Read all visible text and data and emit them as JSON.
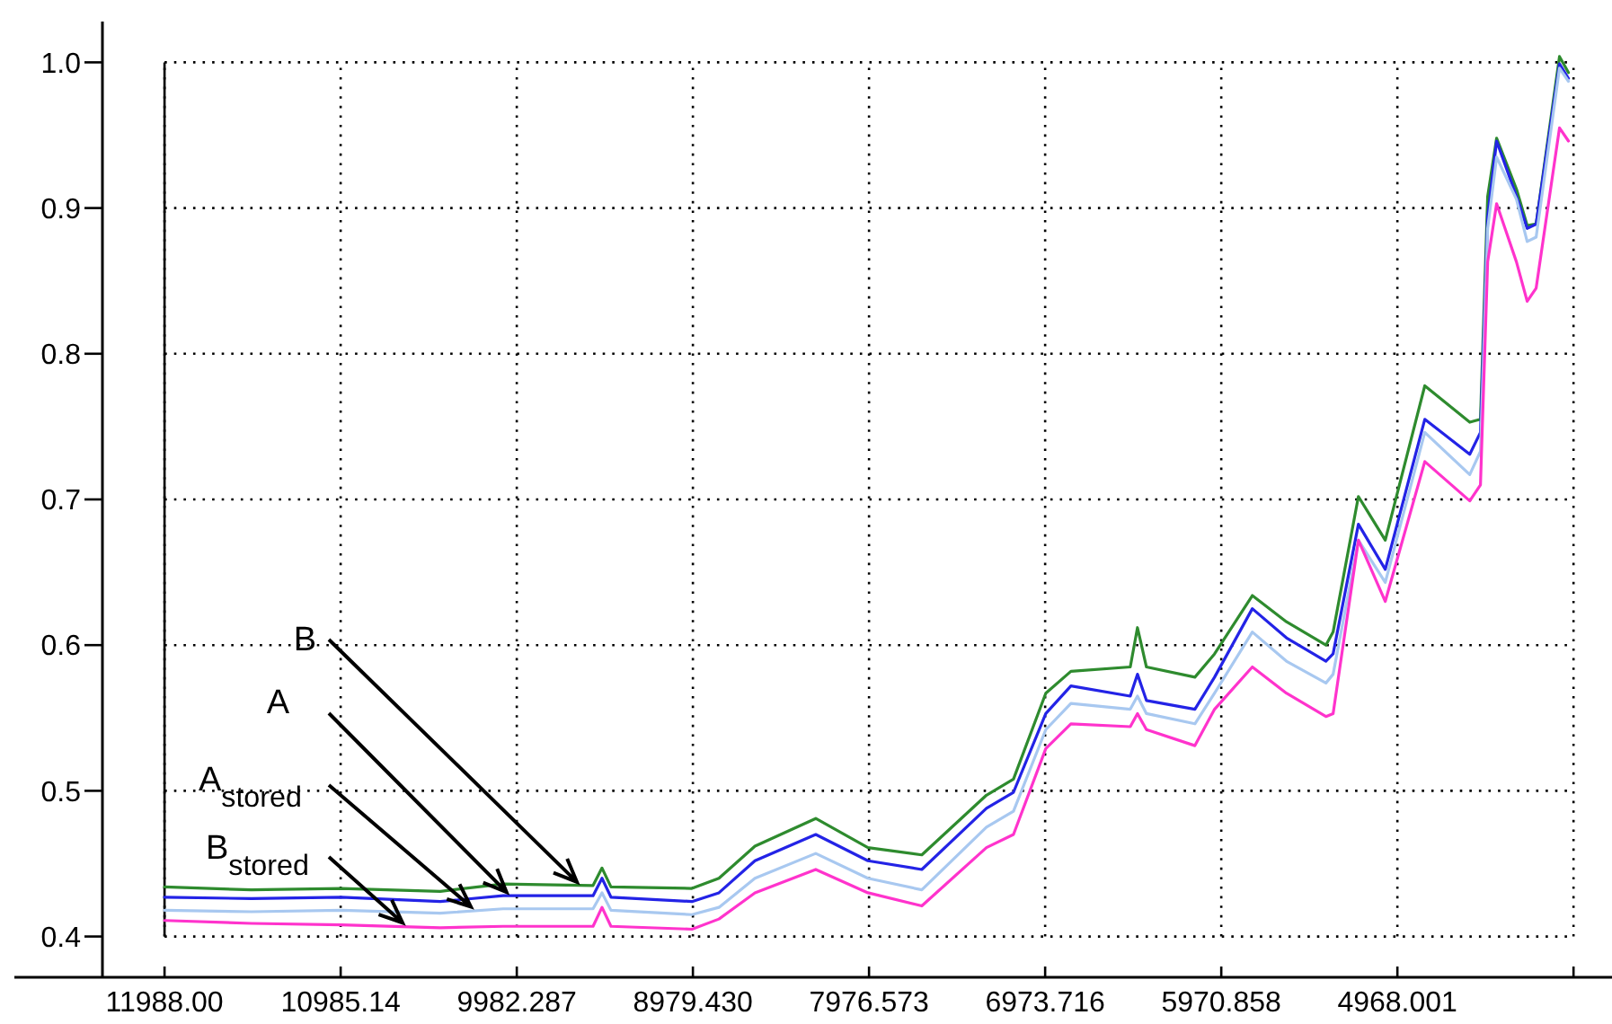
{
  "chart_data": {
    "type": "line",
    "x": [
      11988,
      11493,
      10981,
      10418,
      10060,
      9548,
      9497,
      9446,
      8985,
      8831,
      8626,
      8280,
      7983,
      7676,
      7308,
      7154,
      6970,
      6827,
      6489,
      6448,
      6397,
      6121,
      6009,
      5794,
      5600,
      5375,
      5334,
      5190,
      5037,
      4812,
      4556,
      4495,
      4454,
      4403,
      4290,
      4229,
      4178,
      4045,
      3994
    ],
    "series": [
      {
        "color": "#2e8b2e",
        "values": [
          0.434,
          0.432,
          0.433,
          0.431,
          0.436,
          0.435,
          0.447,
          0.434,
          0.433,
          0.44,
          0.462,
          0.481,
          0.461,
          0.456,
          0.497,
          0.508,
          0.567,
          0.582,
          0.585,
          0.612,
          0.585,
          0.578,
          0.594,
          0.634,
          0.616,
          0.6,
          0.609,
          0.702,
          0.672,
          0.778,
          0.753,
          0.755,
          0.908,
          0.948,
          0.913,
          0.888,
          0.889,
          1.004,
          0.993
        ]
      },
      {
        "color": "#2323e6",
        "values": [
          0.427,
          0.426,
          0.427,
          0.424,
          0.428,
          0.428,
          0.44,
          0.427,
          0.424,
          0.43,
          0.452,
          0.47,
          0.452,
          0.446,
          0.488,
          0.499,
          0.553,
          0.572,
          0.565,
          0.58,
          0.562,
          0.556,
          0.578,
          0.625,
          0.605,
          0.589,
          0.594,
          0.683,
          0.652,
          0.755,
          0.731,
          0.746,
          0.894,
          0.946,
          0.908,
          0.886,
          0.889,
          0.999,
          0.989
        ]
      },
      {
        "color": "#a8c8f0",
        "values": [
          0.418,
          0.417,
          0.418,
          0.416,
          0.419,
          0.419,
          0.43,
          0.418,
          0.415,
          0.42,
          0.44,
          0.457,
          0.44,
          0.432,
          0.475,
          0.486,
          0.542,
          0.56,
          0.556,
          0.565,
          0.553,
          0.546,
          0.567,
          0.609,
          0.589,
          0.574,
          0.58,
          0.672,
          0.643,
          0.746,
          0.717,
          0.733,
          0.886,
          0.935,
          0.906,
          0.877,
          0.88,
          0.996,
          0.987
        ]
      },
      {
        "color": "#ff33cc",
        "values": [
          0.411,
          0.409,
          0.408,
          0.406,
          0.407,
          0.407,
          0.42,
          0.407,
          0.405,
          0.412,
          0.43,
          0.446,
          0.43,
          0.421,
          0.461,
          0.47,
          0.529,
          0.546,
          0.544,
          0.553,
          0.542,
          0.531,
          0.556,
          0.585,
          0.567,
          0.551,
          0.553,
          0.672,
          0.63,
          0.726,
          0.699,
          0.71,
          0.863,
          0.903,
          0.863,
          0.836,
          0.845,
          0.955,
          0.946
        ]
      }
    ],
    "xlim": [
      12843,
      3746
    ],
    "annotations": [
      {
        "text": "B",
        "x": 9640,
        "y": 0.435
      },
      {
        "text": "A",
        "x": 10041,
        "y": 0.428
      },
      {
        "text": "A$_{stored}$",
        "x": 10244,
        "y": 0.418
      },
      {
        "text": "B$_{stored}$",
        "x": 10633,
        "y": 0.407
      }
    ],
    "xticks": [
      {
        "value": 11988,
        "label": "11988.00"
      },
      {
        "value": 10985.14,
        "label": "10985.14"
      },
      9982.287,
      {
        "value": 8979.43,
        "label": "8979.430"
      },
      7976.573,
      6973.716,
      5970.858,
      4968.001,
      {
        "value": 3965.144,
        "label": null
      }
    ],
    "ylim": [
      0.372,
      1.028
    ],
    "yticks": [
      0.4,
      0.5,
      0.6,
      0.7,
      0.8,
      0.9,
      {
        "value": 1,
        "label": "1.0"
      }
    ],
    "grid": true,
    "line_style": "solid",
    "marker": "none",
    "ref_lines": [
      {
        "axis": "x",
        "value": 11988,
        "color": "#000000"
      }
    ]
  }
}
